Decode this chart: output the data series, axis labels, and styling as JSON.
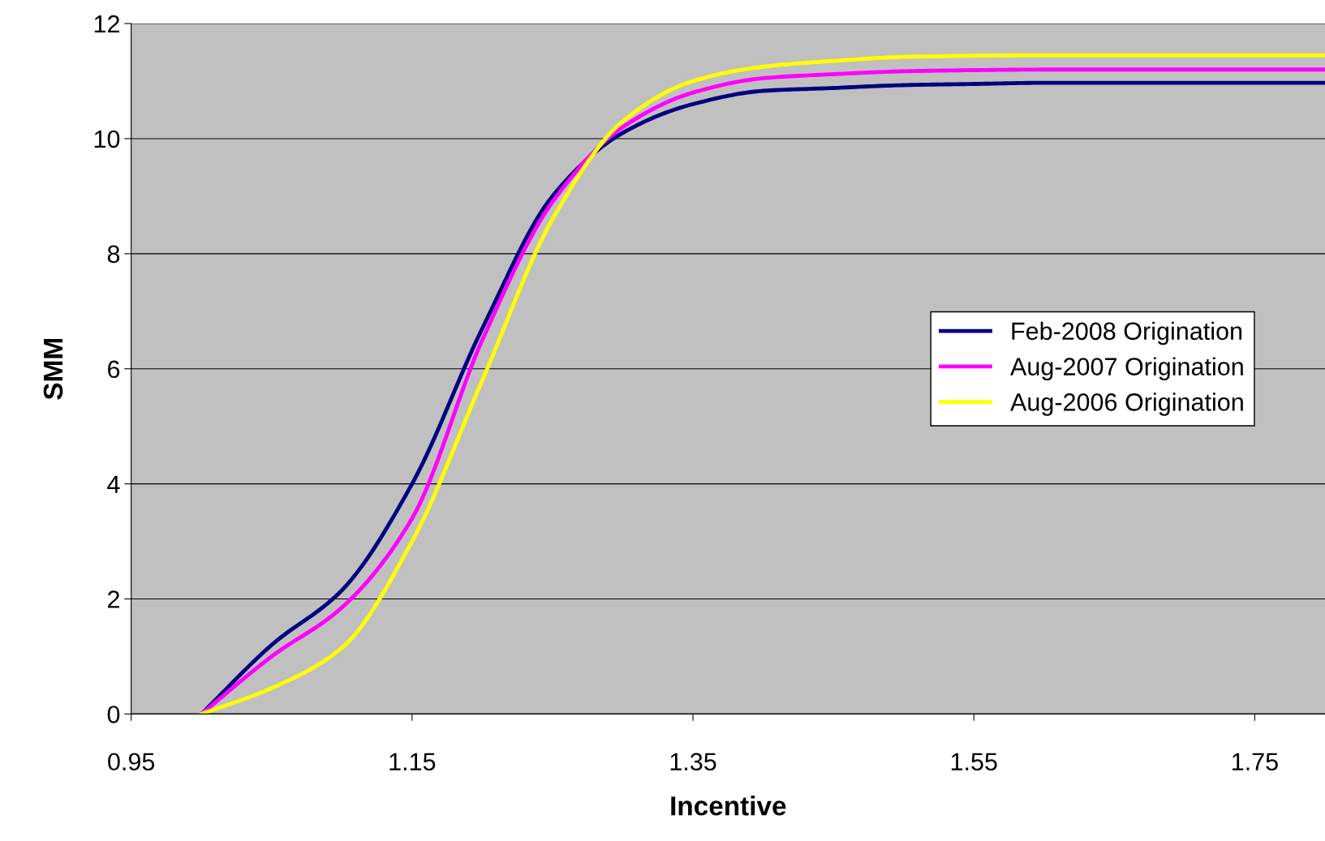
{
  "chart_data": {
    "type": "line",
    "xlabel": "Incentive",
    "ylabel": "SMM",
    "x": [
      1.0,
      1.05,
      1.1,
      1.15,
      1.2,
      1.25,
      1.3,
      1.35,
      1.4,
      1.45,
      1.5,
      1.55,
      1.6,
      1.65,
      1.7,
      1.75,
      1.8
    ],
    "series": [
      {
        "name": "Feb-2008 Origination",
        "color": "#000080",
        "values": [
          0,
          1.2,
          2.15,
          4.0,
          6.7,
          9.0,
          10.1,
          10.6,
          10.83,
          10.88,
          10.93,
          10.95,
          10.97,
          10.97,
          10.97,
          10.97,
          10.97
        ]
      },
      {
        "name": "Aug-2007 Origination",
        "color": "#ff00ff",
        "values": [
          0,
          1.0,
          1.85,
          3.4,
          6.5,
          8.9,
          10.2,
          10.8,
          11.05,
          11.12,
          11.17,
          11.19,
          11.2,
          11.2,
          11.2,
          11.2,
          11.2
        ]
      },
      {
        "name": "Aug-2006 Origination",
        "color": "#ffff00",
        "values": [
          0,
          0.45,
          1.15,
          3.0,
          5.8,
          8.6,
          10.3,
          11.0,
          11.25,
          11.35,
          11.42,
          11.44,
          11.45,
          11.45,
          11.45,
          11.45,
          11.45
        ]
      }
    ],
    "xlim": [
      0.95,
      1.8
    ],
    "xticks": [
      0.95,
      1.15,
      1.35,
      1.55,
      1.75
    ],
    "ylim": [
      0,
      12
    ],
    "yticks": [
      0,
      2,
      4,
      6,
      8,
      10,
      12
    ],
    "grid": "y",
    "legend": "center right",
    "marker": "none",
    "line_style": "solid"
  }
}
